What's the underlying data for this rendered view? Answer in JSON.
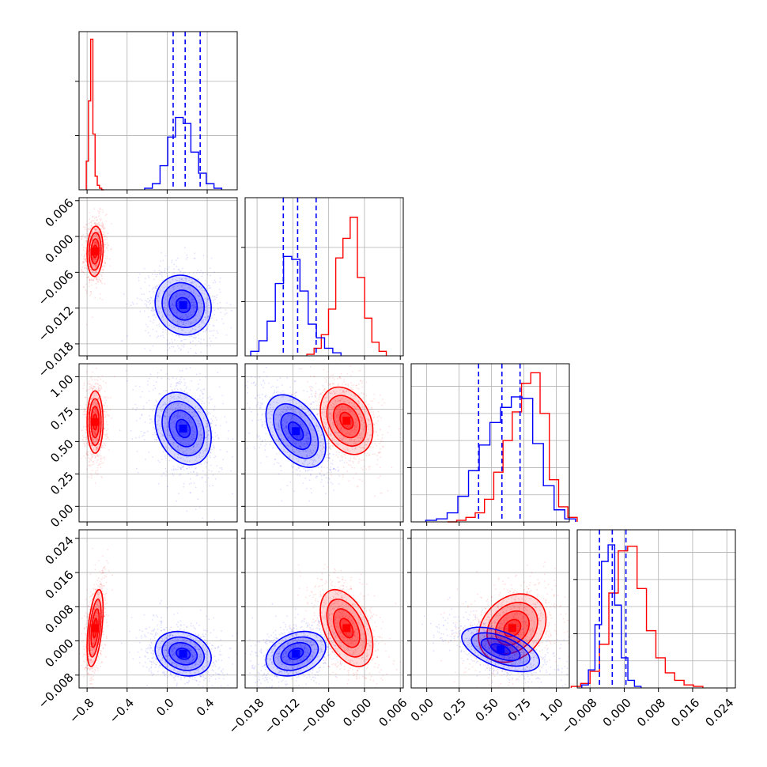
{
  "chart_data": {
    "type": "corner",
    "grid": true,
    "colors": {
      "red": "#ff0000",
      "blue": "#0000ff"
    },
    "parameters": [
      {
        "range": [
          -0.88,
          0.7
        ],
        "ticks": [
          -0.8,
          -0.4,
          0.0,
          0.4
        ],
        "tick_labels": [
          "−0.8",
          "−0.4",
          "0.0",
          "0.4"
        ],
        "red": {
          "center": -0.72,
          "sd": 0.04,
          "hist": [
            0.19,
            0.59,
            1.0,
            0.37,
            0.09,
            0.03,
            0.01,
            0.0
          ]
        },
        "blue": {
          "center": 0.16,
          "sd": 0.14,
          "hist": [
            0.01,
            0.04,
            0.16,
            0.35,
            0.48,
            0.44,
            0.25,
            0.11,
            0.04,
            0.01
          ],
          "quantiles": [
            0.06,
            0.18,
            0.33
          ]
        }
      },
      {
        "range": [
          -0.02,
          0.0065
        ],
        "ticks": [
          -0.018,
          -0.012,
          -0.006,
          0.0,
          0.006
        ],
        "tick_labels": [
          "−0.018",
          "−0.012",
          "−0.006",
          "0.000",
          "0.006"
        ],
        "red": {
          "center": -0.003,
          "sd": 0.0022,
          "hist": [
            0.01,
            0.05,
            0.14,
            0.31,
            0.65,
            0.78,
            0.92,
            0.52,
            0.25,
            0.09,
            0.03
          ]
        },
        "blue": {
          "center": -0.0115,
          "sd": 0.0025,
          "hist": [
            0.03,
            0.1,
            0.23,
            0.48,
            0.66,
            0.64,
            0.43,
            0.21,
            0.12,
            0.05,
            0.02
          ],
          "quantiles": [
            -0.0136,
            -0.0112,
            -0.0081
          ]
        }
      },
      {
        "range": [
          -0.12,
          1.1
        ],
        "ticks": [
          0.0,
          0.25,
          0.5,
          0.75,
          1.0
        ],
        "tick_labels": [
          "0.00",
          "0.25",
          "0.50",
          "0.75",
          "1.00"
        ],
        "red": {
          "center": 0.66,
          "sd": 0.13,
          "hist": [
            0.0,
            0.01,
            0.03,
            0.06,
            0.15,
            0.33,
            0.54,
            0.73,
            0.92,
            0.99,
            0.72,
            0.28,
            0.1,
            0.03
          ]
        },
        "blue": {
          "center": 0.57,
          "sd": 0.15,
          "hist": [
            0.01,
            0.02,
            0.06,
            0.17,
            0.34,
            0.51,
            0.66,
            0.76,
            0.83,
            0.82,
            0.52,
            0.24,
            0.08,
            0.02
          ],
          "quantiles": [
            0.4,
            0.58,
            0.72
          ]
        }
      },
      {
        "range": [
          -0.011,
          0.026
        ],
        "ticks": [
          -0.008,
          0.0,
          0.008,
          0.016,
          0.024
        ],
        "tick_labels": [
          "−0.008",
          "0.000",
          "0.008",
          "0.016",
          "0.024"
        ],
        "red": {
          "center": 0.003,
          "sd": 0.004,
          "hist": [
            0.01,
            0.03,
            0.11,
            0.29,
            0.63,
            0.91,
            0.94,
            0.66,
            0.38,
            0.2,
            0.1,
            0.05,
            0.02,
            0.01
          ]
        },
        "blue": {
          "center": -0.003,
          "sd": 0.0028,
          "hist": [
            0.02,
            0.12,
            0.42,
            0.84,
            0.95,
            0.55,
            0.2,
            0.05,
            0.01
          ],
          "quantiles": [
            -0.0058,
            -0.0028,
            0.0004
          ]
        }
      }
    ],
    "pairs": [
      {
        "row": 1,
        "col": 0,
        "red": {
          "cx": -0.72,
          "cy": -0.0025,
          "sx": 0.04,
          "sy": 0.0021,
          "rho": 0.1
        },
        "blue": {
          "cx": 0.16,
          "cy": -0.0115,
          "sx": 0.14,
          "sy": 0.0025,
          "rho": -0.1
        }
      },
      {
        "row": 2,
        "col": 0,
        "red": {
          "cx": -0.72,
          "cy": 0.65,
          "sx": 0.04,
          "sy": 0.12,
          "rho": 0.0
        },
        "blue": {
          "cx": 0.16,
          "cy": 0.6,
          "sx": 0.14,
          "sy": 0.14,
          "rho": -0.25
        }
      },
      {
        "row": 2,
        "col": 1,
        "red": {
          "cx": -0.003,
          "cy": 0.66,
          "sx": 0.0022,
          "sy": 0.13,
          "rho": -0.3
        },
        "blue": {
          "cx": -0.0115,
          "cy": 0.58,
          "sx": 0.0025,
          "sy": 0.14,
          "rho": -0.45
        }
      },
      {
        "row": 3,
        "col": 0,
        "red": {
          "cx": -0.72,
          "cy": 0.003,
          "sx": 0.04,
          "sy": 0.0045,
          "rho": 0.5
        },
        "blue": {
          "cx": 0.16,
          "cy": -0.003,
          "sx": 0.14,
          "sy": 0.0026,
          "rho": -0.2
        }
      },
      {
        "row": 3,
        "col": 1,
        "red": {
          "cx": -0.003,
          "cy": 0.003,
          "sx": 0.0022,
          "sy": 0.0045,
          "rho": -0.45
        },
        "blue": {
          "cx": -0.0115,
          "cy": -0.003,
          "sx": 0.0025,
          "sy": 0.0026,
          "rho": 0.3
        }
      },
      {
        "row": 3,
        "col": 2,
        "red": {
          "cx": 0.66,
          "cy": 0.003,
          "sx": 0.13,
          "sy": 0.004,
          "rho": 0.25
        },
        "blue": {
          "cx": 0.57,
          "cy": -0.002,
          "sx": 0.15,
          "sy": 0.0026,
          "rho": -0.55
        }
      }
    ],
    "contour_levels_sigma": [
      0.5,
      1.0,
      1.5,
      2.0
    ]
  }
}
